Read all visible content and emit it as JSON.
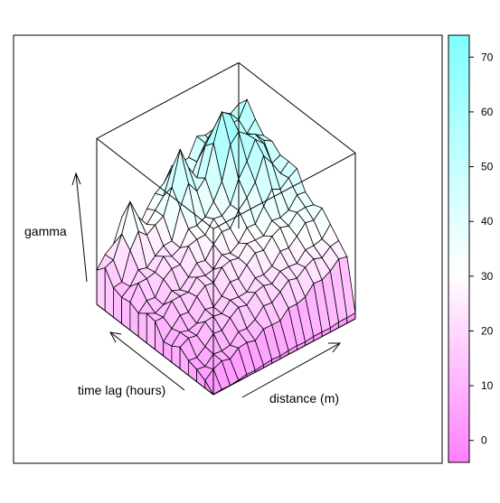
{
  "chart_data": {
    "type": "surface",
    "zlabel": "gamma",
    "xlabel": "time lag (hours)",
    "ylabel": "distance (m)",
    "colorkey": {
      "ticks": [
        0,
        10,
        20,
        30,
        40,
        50,
        60,
        70
      ],
      "range": [
        -4,
        74
      ],
      "colors": {
        "low": "#ff80ff",
        "mid": "#ffffff",
        "high": "#80ffff"
      }
    },
    "grid": {
      "rows": 15,
      "cols": 18
    },
    "surface_profile": {
      "ridge_peaks": [
        {
          "row": 3,
          "col": 12,
          "z": 72
        },
        {
          "row": 5,
          "col": 14,
          "z": 66
        },
        {
          "row": 2,
          "col": 8,
          "z": 62
        },
        {
          "row": 1,
          "col": 3,
          "z": 55
        }
      ],
      "near_corner_z": 0,
      "far_corner_z": 45
    }
  }
}
